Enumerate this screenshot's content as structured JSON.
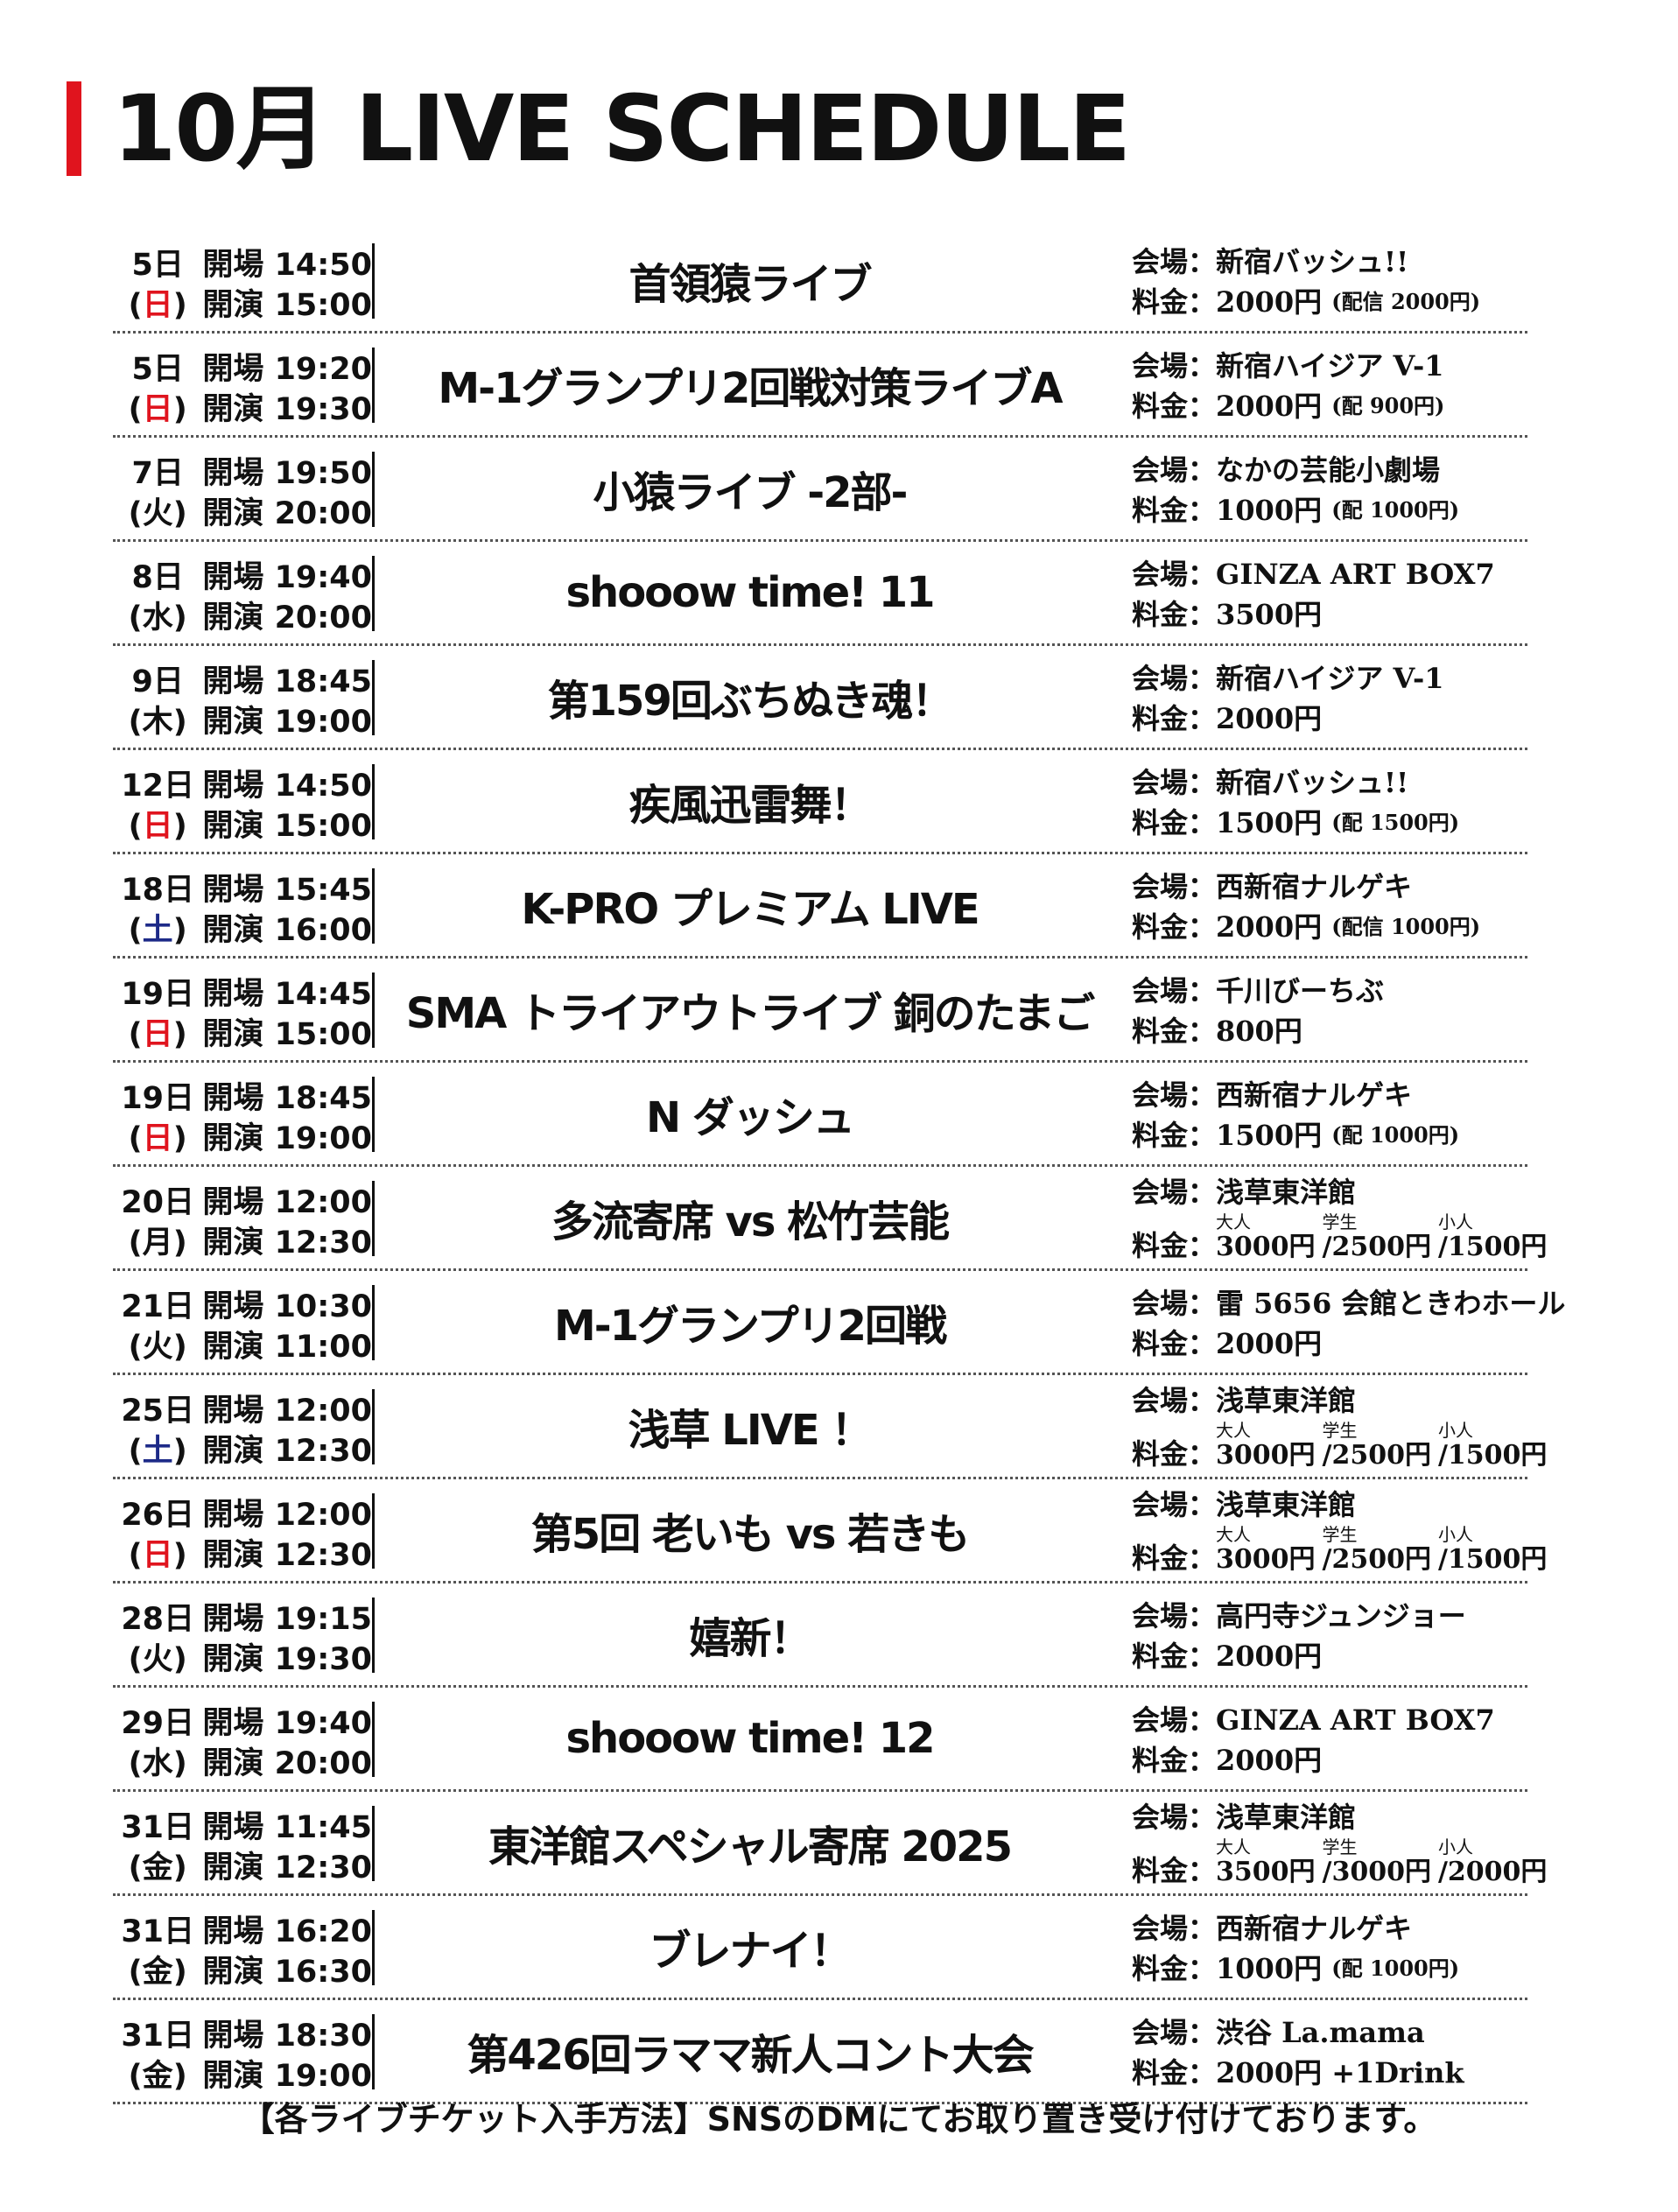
{
  "title": "10月 LIVE SCHEDULE",
  "accent_color": "#e0141e",
  "sunday_color": "#e0141e",
  "saturday_color": "#1d2a88",
  "labels": {
    "open": "開場",
    "start": "開演",
    "venue": "会場：",
    "fee": "料金："
  },
  "rows": [
    {
      "day": "5日",
      "dow": "日",
      "open": "14:50",
      "start": "15:00",
      "event": "首領猿ライブ",
      "venue": "新宿バッシュ!!",
      "fee": "2000円",
      "note": "(配信 2000円)"
    },
    {
      "day": "5日",
      "dow": "日",
      "open": "19:20",
      "start": "19:30",
      "event": "M-1グランプリ2回戦対策ライブA",
      "venue": "新宿ハイジア V-1",
      "fee": "2000円",
      "note": "(配 900円)"
    },
    {
      "day": "7日",
      "dow": "火",
      "open": "19:50",
      "start": "20:00",
      "event": "小猿ライブ -2部-",
      "venue": "なかの芸能小劇場",
      "fee": "1000円",
      "note": "(配 1000円)"
    },
    {
      "day": "8日",
      "dow": "水",
      "open": "19:40",
      "start": "20:00",
      "event": "shooow time! 11",
      "venue": "GINZA ART BOX7",
      "fee": "3500円",
      "note": ""
    },
    {
      "day": "9日",
      "dow": "木",
      "open": "18:45",
      "start": "19:00",
      "event": "第159回ぶちぬき魂！",
      "venue": "新宿ハイジア V-1",
      "fee": "2000円",
      "note": ""
    },
    {
      "day": "12日",
      "dow": "日",
      "open": "14:50",
      "start": "15:00",
      "event": "疾風迅雷舞！",
      "venue": "新宿バッシュ!!",
      "fee": "1500円",
      "note": "(配 1500円)"
    },
    {
      "day": "18日",
      "dow": "土",
      "open": "15:45",
      "start": "16:00",
      "event": "K-PRO プレミアム LIVE",
      "venue": "西新宿ナルゲキ",
      "fee": "2000円",
      "note": "(配信 1000円)"
    },
    {
      "day": "19日",
      "dow": "日",
      "open": "14:45",
      "start": "15:00",
      "event": "SMA トライアウトライブ 銅のたまご",
      "venue": "千川びーちぶ",
      "fee": "800円",
      "note": ""
    },
    {
      "day": "19日",
      "dow": "日",
      "open": "18:45",
      "start": "19:00",
      "event": "N ダッシュ",
      "venue": "西新宿ナルゲキ",
      "fee": "1500円",
      "note": "(配 1000円)"
    },
    {
      "day": "20日",
      "dow": "月",
      "open": "12:00",
      "start": "12:30",
      "event": "多流寄席 vs 松竹芸能",
      "venue": "浅草東洋館",
      "tiers": [
        {
          "label": "大人",
          "price": "3000円"
        },
        {
          "label": "学生",
          "price": "/2500円"
        },
        {
          "label": "小人",
          "price": "/1500円"
        }
      ]
    },
    {
      "day": "21日",
      "dow": "火",
      "open": "10:30",
      "start": "11:00",
      "event": "M-1グランプリ2回戦",
      "venue": "雷 5656 会館ときわホール",
      "fee": "2000円",
      "note": ""
    },
    {
      "day": "25日",
      "dow": "土",
      "open": "12:00",
      "start": "12:30",
      "event": "浅草 LIVE ！",
      "venue": "浅草東洋館",
      "tiers": [
        {
          "label": "大人",
          "price": "3000円"
        },
        {
          "label": "学生",
          "price": "/2500円"
        },
        {
          "label": "小人",
          "price": "/1500円"
        }
      ]
    },
    {
      "day": "26日",
      "dow": "日",
      "open": "12:00",
      "start": "12:30",
      "event": "第5回 老いも vs 若きも",
      "venue": "浅草東洋館",
      "tiers": [
        {
          "label": "大人",
          "price": "3000円"
        },
        {
          "label": "学生",
          "price": "/2500円"
        },
        {
          "label": "小人",
          "price": "/1500円"
        }
      ]
    },
    {
      "day": "28日",
      "dow": "火",
      "open": "19:15",
      "start": "19:30",
      "event": "嬉新！",
      "venue": "高円寺ジュンジョー",
      "fee": "2000円",
      "note": ""
    },
    {
      "day": "29日",
      "dow": "水",
      "open": "19:40",
      "start": "20:00",
      "event": "shooow time! 12",
      "venue": "GINZA ART BOX7",
      "fee": "2000円",
      "note": ""
    },
    {
      "day": "31日",
      "dow": "金",
      "open": "11:45",
      "start": "12:30",
      "event": "東洋館スペシャル寄席 2025",
      "venue": "浅草東洋館",
      "tiers": [
        {
          "label": "大人",
          "price": "3500円"
        },
        {
          "label": "学生",
          "price": "/3000円"
        },
        {
          "label": "小人",
          "price": "/2000円"
        }
      ]
    },
    {
      "day": "31日",
      "dow": "金",
      "open": "16:20",
      "start": "16:30",
      "event": "ブレナイ！",
      "venue": "西新宿ナルゲキ",
      "fee": "1000円",
      "note": "(配 1000円)"
    },
    {
      "day": "31日",
      "dow": "金",
      "open": "18:30",
      "start": "19:00",
      "event": "第426回ラママ新人コント大会",
      "venue": "渋谷 La.mama",
      "fee": "2000円 +1Drink",
      "note": ""
    }
  ],
  "footer": "【各ライブチケット入手方法】SNSのDMにてお取り置き受け付けております。"
}
